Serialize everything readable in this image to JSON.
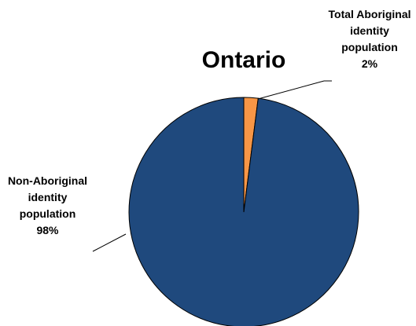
{
  "chart_data": {
    "type": "pie",
    "title": "Ontario",
    "categories": [
      "Total Aboriginal identity population",
      "Non-Aboriginal identity population"
    ],
    "values": [
      2,
      98
    ],
    "value_labels": [
      "2%",
      "98%"
    ],
    "colors": [
      "#f79646",
      "#1f497d"
    ]
  }
}
